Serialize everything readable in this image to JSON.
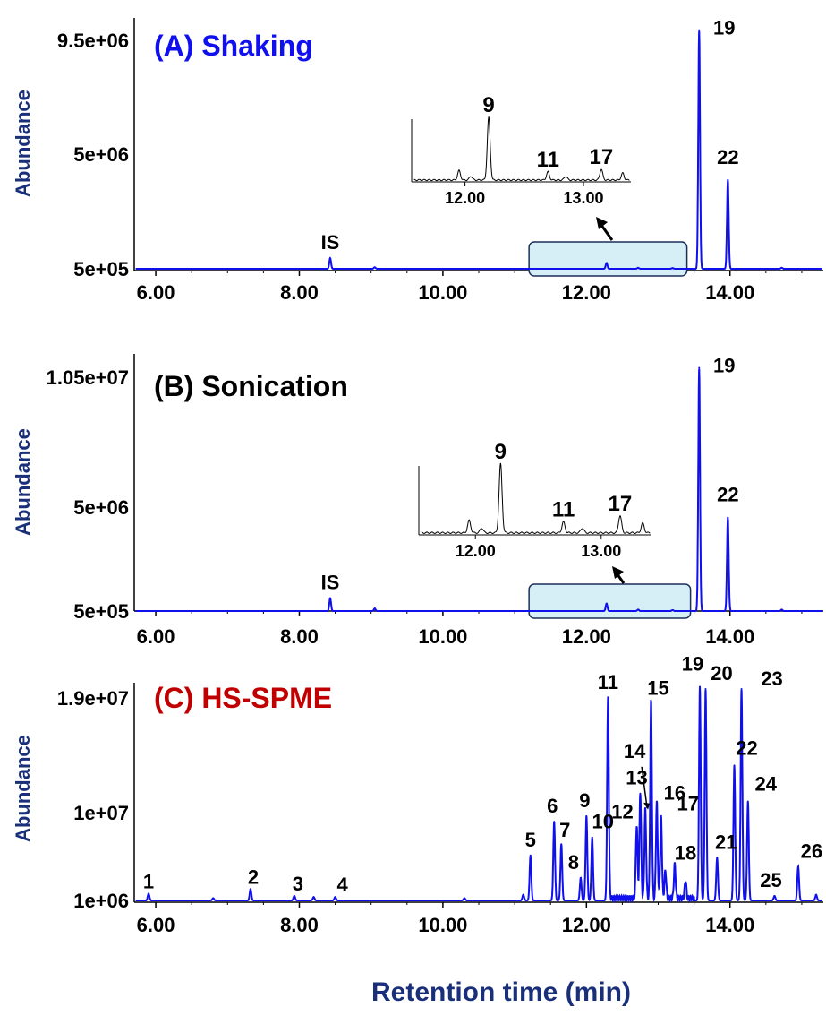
{
  "xlabel": "Retention time (min)",
  "colors": {
    "trace": "#1010ee",
    "axis": "#000000",
    "axis_label": "#1a2f7a",
    "panel_a_title": "#1010ee",
    "panel_b_title": "#000000",
    "panel_c_title": "#c00000",
    "highlight_fill": "#d6eef6",
    "highlight_stroke": "#1a2f5a"
  },
  "chart_data": [
    {
      "type": "line",
      "title": "(A) Shaking",
      "ylabel": "Abundance",
      "xlim": [
        5.7,
        15.3
      ],
      "ylim": [
        500000,
        10000000
      ],
      "xticks": [
        "6.00",
        "8.00",
        "10.00",
        "12.00",
        "14.00"
      ],
      "yticks": [
        {
          "label": "9.5e+06",
          "value": 9500000
        },
        {
          "label": "5e+06",
          "value": 5000000
        },
        {
          "label": "5e+05",
          "value": 500000
        }
      ],
      "peaks": [
        {
          "label": "IS",
          "x": 8.43,
          "y": 920000
        },
        {
          "label": "",
          "x": 9.05,
          "y": 560000
        },
        {
          "label": "",
          "x": 12.28,
          "y": 730000
        },
        {
          "label": "",
          "x": 12.72,
          "y": 540000
        },
        {
          "label": "",
          "x": 13.2,
          "y": 530000
        },
        {
          "label": "19",
          "x": 13.57,
          "y": 9900000
        },
        {
          "label": "22",
          "x": 13.97,
          "y": 4000000
        },
        {
          "label": "",
          "x": 14.72,
          "y": 540000
        }
      ],
      "highlight_region": {
        "x": [
          11.2,
          13.4
        ]
      },
      "inset": {
        "xlim": [
          11.55,
          13.4
        ],
        "xticks": [
          "12.00",
          "13.00"
        ],
        "peaks": [
          {
            "label": "",
            "x": 11.95,
            "rel": 0.15
          },
          {
            "label": "",
            "x": 12.05,
            "rel": 0.06
          },
          {
            "label": "9",
            "x": 12.2,
            "rel": 1.0
          },
          {
            "label": "11",
            "x": 12.7,
            "rel": 0.13
          },
          {
            "label": "",
            "x": 12.85,
            "rel": 0.06
          },
          {
            "label": "17",
            "x": 13.15,
            "rel": 0.17
          },
          {
            "label": "",
            "x": 13.33,
            "rel": 0.11
          }
        ]
      }
    },
    {
      "type": "line",
      "title": "(B) Sonication",
      "ylabel": "Abundance",
      "xlim": [
        5.7,
        15.3
      ],
      "ylim": [
        500000,
        11000000
      ],
      "xticks": [
        "6.00",
        "8.00",
        "10.00",
        "12.00",
        "14.00"
      ],
      "yticks": [
        {
          "label": "1.05e+07",
          "value": 10500000
        },
        {
          "label": "5e+06",
          "value": 5000000
        },
        {
          "label": "5e+05",
          "value": 500000
        }
      ],
      "peaks": [
        {
          "label": "IS",
          "x": 8.43,
          "y": 1050000
        },
        {
          "label": "",
          "x": 9.05,
          "y": 610000
        },
        {
          "label": "",
          "x": 12.28,
          "y": 820000
        },
        {
          "label": "",
          "x": 12.72,
          "y": 560000
        },
        {
          "label": "",
          "x": 13.2,
          "y": 540000
        },
        {
          "label": "19",
          "x": 13.57,
          "y": 10900000
        },
        {
          "label": "22",
          "x": 13.97,
          "y": 4500000
        },
        {
          "label": "",
          "x": 14.72,
          "y": 560000
        }
      ],
      "highlight_region": {
        "x": [
          11.2,
          13.45
        ]
      },
      "inset": {
        "xlim": [
          11.55,
          13.4
        ],
        "xticks": [
          "12.00",
          "13.00"
        ],
        "peaks": [
          {
            "label": "",
            "x": 11.95,
            "rel": 0.18
          },
          {
            "label": "",
            "x": 12.05,
            "rel": 0.07
          },
          {
            "label": "9",
            "x": 12.2,
            "rel": 1.0
          },
          {
            "label": "11",
            "x": 12.7,
            "rel": 0.16
          },
          {
            "label": "",
            "x": 12.85,
            "rel": 0.07
          },
          {
            "label": "17",
            "x": 13.15,
            "rel": 0.25
          },
          {
            "label": "",
            "x": 13.33,
            "rel": 0.14
          }
        ]
      }
    },
    {
      "type": "line",
      "title": "(C) HS-SPME",
      "ylabel": "Abundance",
      "xlim": [
        5.7,
        15.3
      ],
      "ylim": [
        1000000,
        20000000
      ],
      "xticks": [
        "6.00",
        "8.00",
        "10.00",
        "12.00",
        "14.00"
      ],
      "yticks": [
        {
          "label": "1.9e+07",
          "value": 19000000
        },
        {
          "label": "1e+07",
          "value": 10000000
        },
        {
          "label": "1e+06",
          "value": 1000000
        }
      ],
      "peaks": [
        {
          "label": "1",
          "x": 5.9,
          "y": 1600000
        },
        {
          "label": "",
          "x": 6.8,
          "y": 1200000
        },
        {
          "label": "2",
          "x": 7.32,
          "y": 2000000
        },
        {
          "label": "3",
          "x": 7.93,
          "y": 1400000
        },
        {
          "label": "",
          "x": 8.2,
          "y": 1300000
        },
        {
          "label": "4",
          "x": 8.5,
          "y": 1300000
        },
        {
          "label": "",
          "x": 10.3,
          "y": 1200000
        },
        {
          "label": "",
          "x": 11.12,
          "y": 1500000
        },
        {
          "label": "5",
          "x": 11.22,
          "y": 5000000
        },
        {
          "label": "6",
          "x": 11.55,
          "y": 8000000
        },
        {
          "label": "7",
          "x": 11.65,
          "y": 6000000
        },
        {
          "label": "8",
          "x": 11.92,
          "y": 3000000
        },
        {
          "label": "9",
          "x": 12.0,
          "y": 8500000
        },
        {
          "label": "10",
          "x": 12.08,
          "y": 6600000
        },
        {
          "label": "11",
          "x": 12.3,
          "y": 19000000
        },
        {
          "label": "12",
          "x": 12.7,
          "y": 7500000
        },
        {
          "label": "13",
          "x": 12.75,
          "y": 10500000
        },
        {
          "label": "14",
          "x": 12.82,
          "y": 8900000
        },
        {
          "label": "15",
          "x": 12.9,
          "y": 18500000
        },
        {
          "label": "16",
          "x": 12.98,
          "y": 9500000
        },
        {
          "label": "17",
          "x": 13.04,
          "y": 8200000
        },
        {
          "label": "",
          "x": 13.1,
          "y": 3500000
        },
        {
          "label": "18",
          "x": 13.23,
          "y": 4000000
        },
        {
          "label": "",
          "x": 13.38,
          "y": 2600000
        },
        {
          "label": "19",
          "x": 13.58,
          "y": 20000000
        },
        {
          "label": "20",
          "x": 13.66,
          "y": 19800000
        },
        {
          "label": "21",
          "x": 13.82,
          "y": 4800000
        },
        {
          "label": "22",
          "x": 14.06,
          "y": 13000000
        },
        {
          "label": "23",
          "x": 14.16,
          "y": 19800000
        },
        {
          "label": "24",
          "x": 14.25,
          "y": 9800000
        },
        {
          "label": "25",
          "x": 14.62,
          "y": 1400000
        },
        {
          "label": "26",
          "x": 14.95,
          "y": 4000000
        },
        {
          "label": "",
          "x": 15.2,
          "y": 1500000
        }
      ]
    }
  ]
}
